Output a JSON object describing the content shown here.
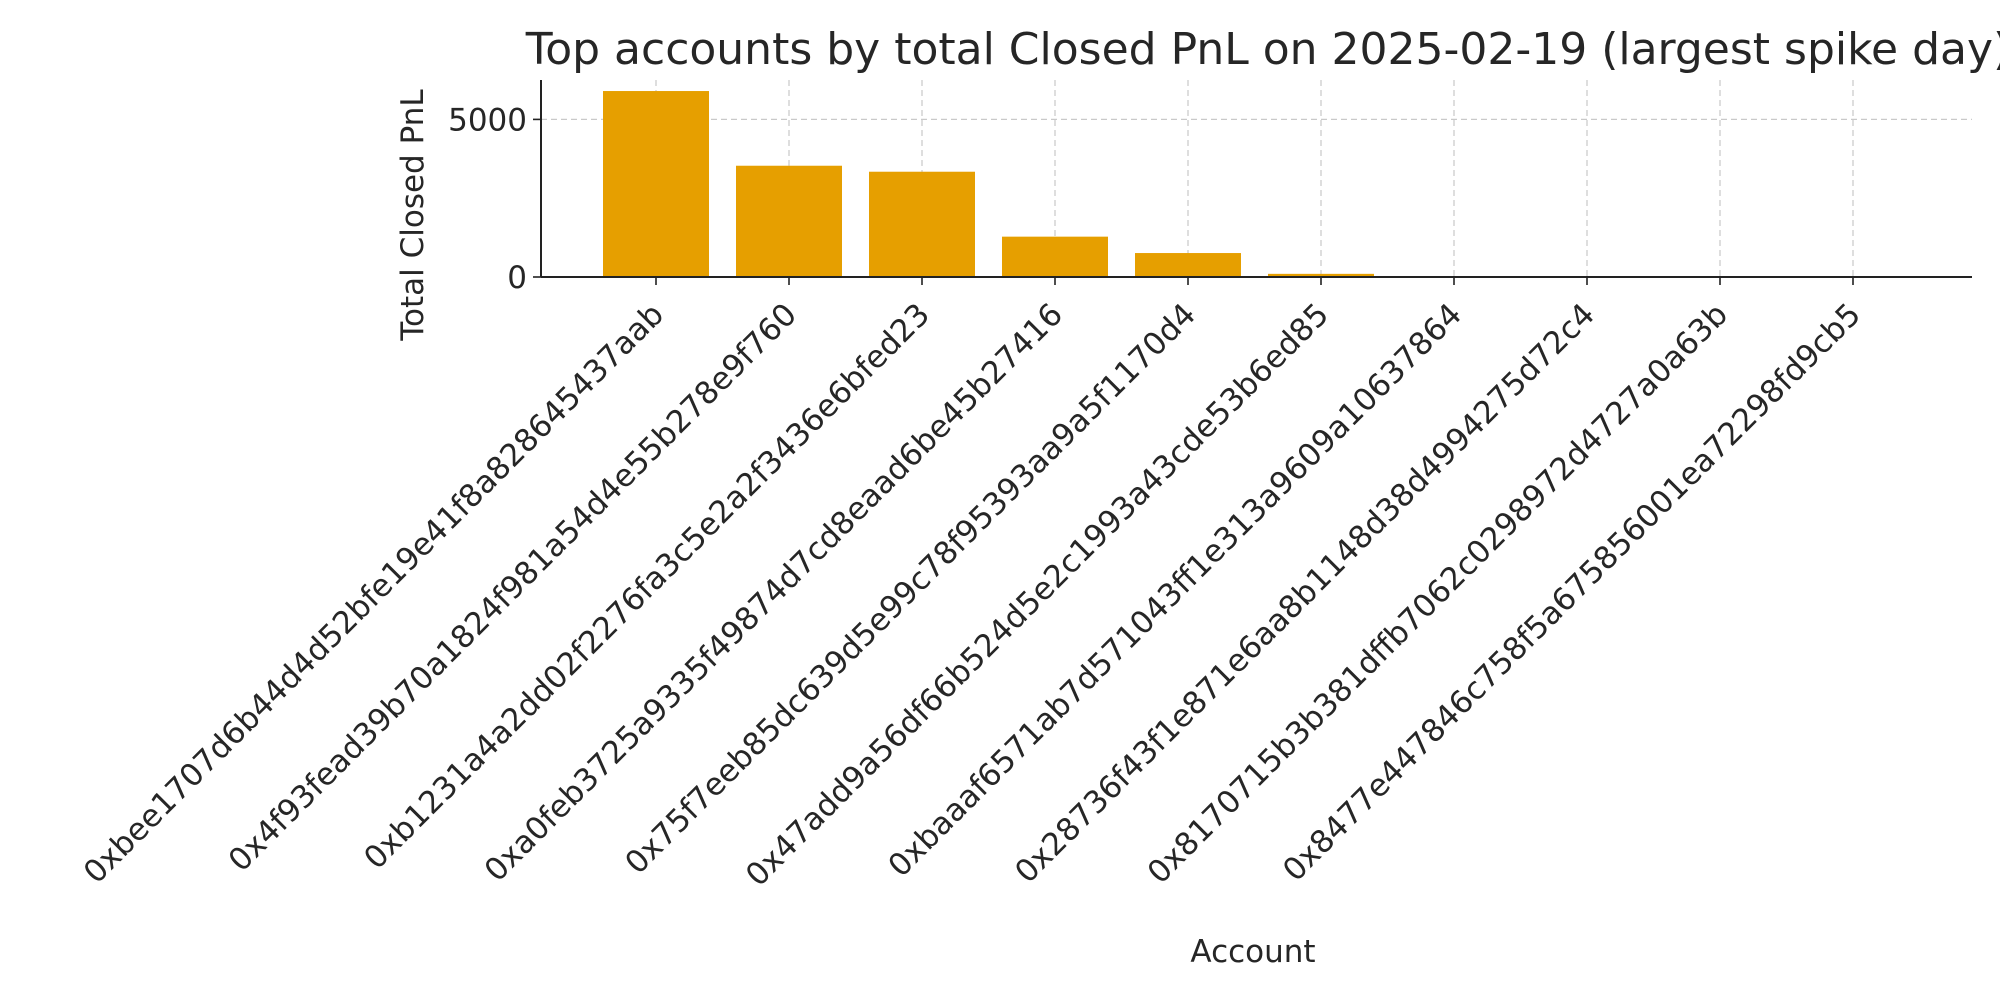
{
  "chart_data": {
    "type": "bar",
    "title": "Top accounts by total Closed PnL on 2025-02-19 (largest spike day)",
    "xlabel": "Account",
    "ylabel": "Total Closed PnL",
    "categories": [
      "0xbee1707d6b44d4d52bfe19e41f8a82864543​7aab",
      "0x4f93fead39b70a1824f981a54d4e55b278e9f760",
      "0xb1231a4a2dd02f2276fa3c5e2a2f3436e6bfed23",
      "0xa0feb3725a9335f49874d7cd8eaad6be45b27416",
      "0x75f7eeb85dc639d5e99c78f95393aa9a5f1170d4",
      "0x47add9a56df66b524d5e2c1993a43cde53b6ed85",
      "0xbaaaf6571ab7d571043ff1e313a9609a10637864",
      "0x28736f43f1e871e6aa8b1148d38d4994275d72c4",
      "0x8170715b3b381dffb7062c0298972d4727a0a63b",
      "0x8477e447846c758f5a675856001ea72298fd9cb5"
    ],
    "values": [
      5900,
      3530,
      3340,
      1280,
      760,
      100,
      10,
      5,
      3,
      2
    ],
    "yticks": [
      0,
      5000
    ],
    "ylim": [
      0,
      6250
    ],
    "bar_color": "#e69f00",
    "grid": true,
    "legend": "none"
  }
}
